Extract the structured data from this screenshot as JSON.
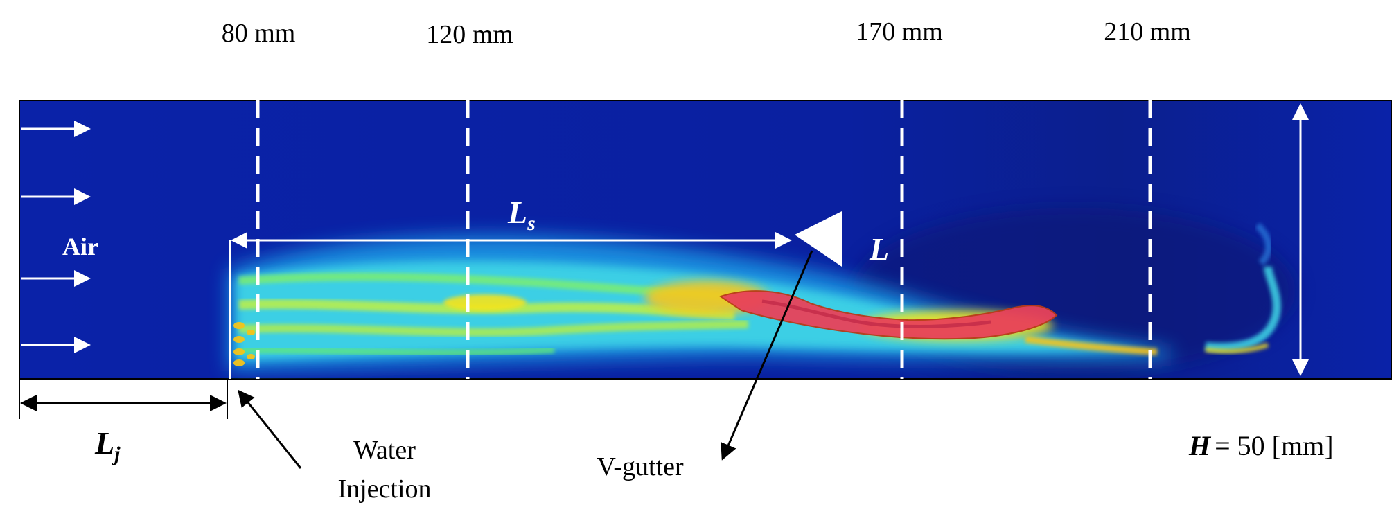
{
  "station_labels": [
    "80 mm",
    "120 mm",
    "170 mm",
    "210 mm"
  ],
  "labels": {
    "air": "Air",
    "ls_main": "L",
    "ls_sub": "s",
    "l": "L",
    "lj_main": "L",
    "lj_sub": "j",
    "water_line1": "Water",
    "water_line2": "Injection",
    "vgutter": "V-gutter",
    "h_symbol": "H",
    "h_value": "=  50 [mm]"
  },
  "colors": {
    "channel_background": "#0a22a8",
    "arrows": "#ffffff",
    "annotation": "#000000",
    "flame_core": "#e83a58",
    "spray_hot": "#f4e41a",
    "spray_mid": "#35d4e6"
  }
}
